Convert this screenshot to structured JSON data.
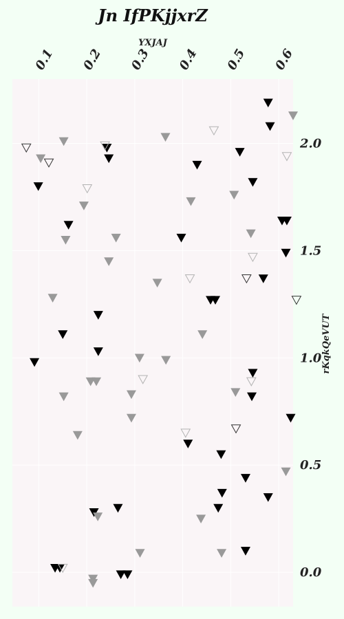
{
  "chart_data": {
    "type": "scatter",
    "title": "Jn  IfPKjjxrZ",
    "xlabel": "YXJAJ",
    "ylabel": "rKqkQeVUT",
    "xlim": [
      0.045,
      0.63
    ],
    "ylim": [
      -0.16,
      2.3
    ],
    "x_ticks": [
      0.1,
      0.2,
      0.3,
      0.4,
      0.5,
      0.6
    ],
    "x_tick_labels": [
      "0.1",
      "0.2",
      "0.3",
      "0.4",
      "0.5",
      "0.6"
    ],
    "y_ticks": [
      0.0,
      0.5,
      1.0,
      1.5,
      2.0
    ],
    "y_tick_labels": [
      "0.0",
      "0.5",
      "1.0",
      "1.5",
      "2.0"
    ],
    "x_axis_position": "top",
    "y_axis_position": "right",
    "grid": true,
    "marker": "triangle-down",
    "series": [
      {
        "style": "filled",
        "color": "#000000",
        "points": [
          [
            0.578,
            2.19
          ],
          [
            0.582,
            2.08
          ],
          [
            0.519,
            1.96
          ],
          [
            0.242,
            1.98
          ],
          [
            0.246,
            1.93
          ],
          [
            0.43,
            1.9
          ],
          [
            0.546,
            1.82
          ],
          [
            0.099,
            1.8
          ],
          [
            0.607,
            1.64
          ],
          [
            0.617,
            1.64
          ],
          [
            0.162,
            1.62
          ],
          [
            0.397,
            1.56
          ],
          [
            0.615,
            1.49
          ],
          [
            0.568,
            1.37
          ],
          [
            0.458,
            1.27
          ],
          [
            0.468,
            1.27
          ],
          [
            0.224,
            1.2
          ],
          [
            0.15,
            1.11
          ],
          [
            0.224,
            1.03
          ],
          [
            0.091,
            0.98
          ],
          [
            0.546,
            0.93
          ],
          [
            0.544,
            0.82
          ],
          [
            0.625,
            0.72
          ],
          [
            0.411,
            0.6
          ],
          [
            0.48,
            0.55
          ],
          [
            0.531,
            0.44
          ],
          [
            0.578,
            0.35
          ],
          [
            0.482,
            0.37
          ],
          [
            0.474,
            0.3
          ],
          [
            0.265,
            0.3
          ],
          [
            0.215,
            0.28
          ],
          [
            0.531,
            0.1
          ],
          [
            0.134,
            0.02
          ],
          [
            0.144,
            0.02
          ],
          [
            0.271,
            -0.01
          ],
          [
            0.285,
            -0.01
          ]
        ]
      },
      {
        "style": "filled",
        "color": "#999999",
        "points": [
          [
            0.63,
            2.13
          ],
          [
            0.364,
            2.03
          ],
          [
            0.152,
            2.01
          ],
          [
            0.104,
            1.93
          ],
          [
            0.417,
            1.73
          ],
          [
            0.507,
            1.76
          ],
          [
            0.194,
            1.71
          ],
          [
            0.542,
            1.58
          ],
          [
            0.261,
            1.56
          ],
          [
            0.156,
            1.55
          ],
          [
            0.246,
            1.45
          ],
          [
            0.347,
            1.35
          ],
          [
            0.129,
            1.28
          ],
          [
            0.441,
            1.11
          ],
          [
            0.31,
            1.0
          ],
          [
            0.365,
            0.99
          ],
          [
            0.208,
            0.89
          ],
          [
            0.22,
            0.89
          ],
          [
            0.293,
            0.83
          ],
          [
            0.152,
            0.82
          ],
          [
            0.51,
            0.84
          ],
          [
            0.293,
            0.72
          ],
          [
            0.181,
            0.64
          ],
          [
            0.615,
            0.47
          ],
          [
            0.223,
            0.26
          ],
          [
            0.438,
            0.25
          ],
          [
            0.311,
            0.09
          ],
          [
            0.481,
            0.09
          ],
          [
            0.213,
            -0.03
          ],
          [
            0.213,
            -0.05
          ]
        ]
      },
      {
        "style": "hollow",
        "color": "#333333",
        "points": [
          [
            0.074,
            1.98
          ],
          [
            0.121,
            1.91
          ],
          [
            0.533,
            1.37
          ],
          [
            0.637,
            1.27
          ],
          [
            0.511,
            0.67
          ]
        ]
      },
      {
        "style": "hollow",
        "color": "#b3b3b3",
        "points": [
          [
            0.465,
            2.06
          ],
          [
            0.238,
            1.99
          ],
          [
            0.617,
            1.94
          ],
          [
            0.201,
            1.79
          ],
          [
            0.546,
            1.47
          ],
          [
            0.415,
            1.37
          ],
          [
            0.317,
            0.9
          ],
          [
            0.543,
            0.89
          ],
          [
            0.406,
            0.65
          ],
          [
            0.15,
            0.02
          ]
        ]
      }
    ]
  }
}
